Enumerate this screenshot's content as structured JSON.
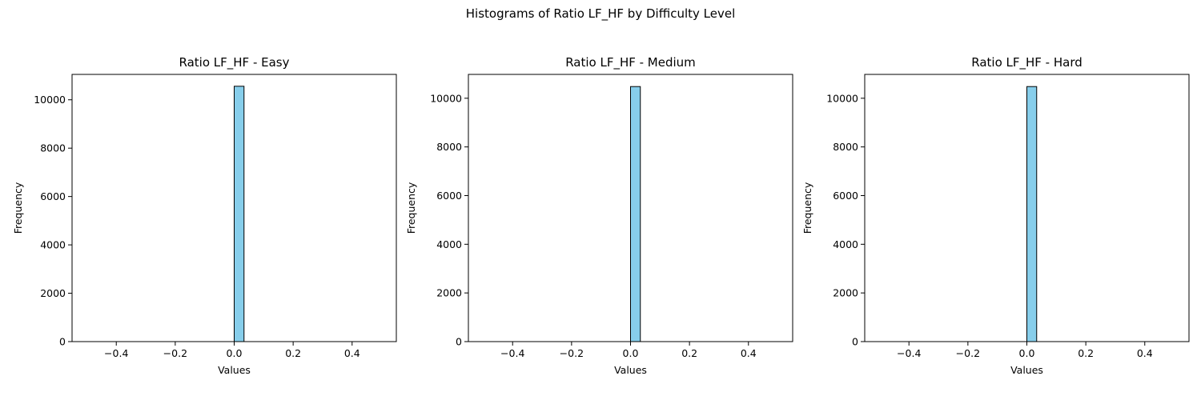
{
  "figure": {
    "suptitle": "Histograms of Ratio LF_HF by Difficulty Level"
  },
  "colors": {
    "bar_fill": "#87CEEB",
    "bar_edge": "#000000"
  },
  "chart_data": [
    {
      "type": "bar",
      "title": "Ratio LF_HF - Easy",
      "xlabel": "Values",
      "ylabel": "Frequency",
      "xlim": [
        -0.55,
        0.55
      ],
      "ylim": [
        0,
        11050
      ],
      "xticks": [
        -0.4,
        -0.2,
        0.0,
        0.2,
        0.4
      ],
      "xtick_labels": [
        "−0.4",
        "−0.2",
        "0.0",
        "0.2",
        "0.4"
      ],
      "yticks": [
        0,
        2000,
        4000,
        6000,
        8000,
        10000
      ],
      "ytick_labels": [
        "0",
        "2000",
        "4000",
        "6000",
        "8000",
        "10000"
      ],
      "bin_edges_range": [
        -0.5,
        0.5
      ],
      "bins": 30,
      "bars": [
        {
          "x0": 0.0,
          "x1": 0.0333,
          "value": 10560
        }
      ]
    },
    {
      "type": "bar",
      "title": "Ratio LF_HF - Medium",
      "xlabel": "Values",
      "ylabel": "Frequency",
      "xlim": [
        -0.55,
        0.55
      ],
      "ylim": [
        0,
        10980
      ],
      "xticks": [
        -0.4,
        -0.2,
        0.0,
        0.2,
        0.4
      ],
      "xtick_labels": [
        "−0.4",
        "−0.2",
        "0.0",
        "0.2",
        "0.4"
      ],
      "yticks": [
        0,
        2000,
        4000,
        6000,
        8000,
        10000
      ],
      "ytick_labels": [
        "0",
        "2000",
        "4000",
        "6000",
        "8000",
        "10000"
      ],
      "bin_edges_range": [
        -0.5,
        0.5
      ],
      "bins": 30,
      "bars": [
        {
          "x0": 0.0,
          "x1": 0.0333,
          "value": 10480
        }
      ]
    },
    {
      "type": "bar",
      "title": "Ratio LF_HF - Hard",
      "xlabel": "Values",
      "ylabel": "Frequency",
      "xlim": [
        -0.55,
        0.55
      ],
      "ylim": [
        0,
        10980
      ],
      "xticks": [
        -0.4,
        -0.2,
        0.0,
        0.2,
        0.4
      ],
      "xtick_labels": [
        "−0.4",
        "−0.2",
        "0.0",
        "0.2",
        "0.4"
      ],
      "yticks": [
        0,
        2000,
        4000,
        6000,
        8000,
        10000
      ],
      "ytick_labels": [
        "0",
        "2000",
        "4000",
        "6000",
        "8000",
        "10000"
      ],
      "bin_edges_range": [
        -0.5,
        0.5
      ],
      "bins": 30,
      "bars": [
        {
          "x0": 0.0,
          "x1": 0.0333,
          "value": 10480
        }
      ]
    }
  ]
}
